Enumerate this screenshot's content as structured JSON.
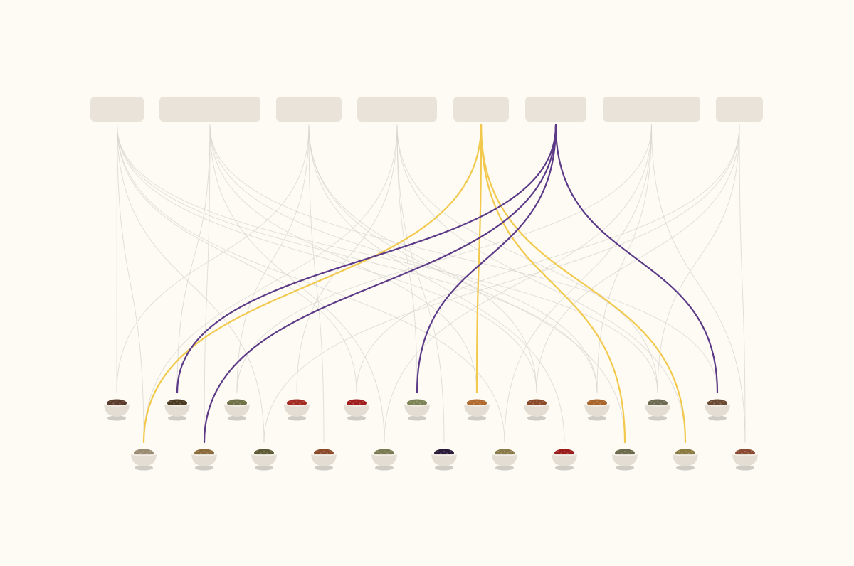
{
  "colors": {
    "background": "#fdfbf4",
    "category_box": "#e9e3da",
    "edge_default": "#d8d6d2",
    "highlight_yellow": "#f2c94c",
    "highlight_purple": "#5c3a87",
    "bowl": "#e4ddd3",
    "bowl_shadow": "#c6c3bc"
  },
  "categories": [
    {
      "id": "c0",
      "icon": "category-box"
    },
    {
      "id": "c1",
      "icon": "category-box"
    },
    {
      "id": "c2",
      "icon": "category-box"
    },
    {
      "id": "c3",
      "icon": "category-box"
    },
    {
      "id": "c4",
      "icon": "category-box",
      "highlight": "yellow"
    },
    {
      "id": "c5",
      "icon": "category-box",
      "highlight": "purple"
    },
    {
      "id": "c6",
      "icon": "category-box"
    },
    {
      "id": "c7",
      "icon": "category-box"
    }
  ],
  "spices": [
    {
      "id": "r1-0",
      "row": 1,
      "icon": "spice-bowl-icon",
      "color": "#5a3a2a"
    },
    {
      "id": "r1-1",
      "row": 1,
      "icon": "spice-bowl-icon",
      "color": "#4a3a22"
    },
    {
      "id": "r1-2",
      "row": 1,
      "icon": "spice-bowl-icon",
      "color": "#6f7046"
    },
    {
      "id": "r1-3",
      "row": 1,
      "icon": "spice-bowl-icon",
      "color": "#a32a22"
    },
    {
      "id": "r1-4",
      "row": 1,
      "icon": "spice-bowl-icon",
      "color": "#a01d1d"
    },
    {
      "id": "r1-5",
      "row": 1,
      "icon": "spice-bowl-icon",
      "color": "#7c8456"
    },
    {
      "id": "r1-6",
      "row": 1,
      "icon": "spice-bowl-icon",
      "color": "#b06a2e"
    },
    {
      "id": "r1-7",
      "row": 1,
      "icon": "spice-bowl-icon",
      "color": "#8a4a2a"
    },
    {
      "id": "r1-8",
      "row": 1,
      "icon": "spice-bowl-icon",
      "color": "#a8642a"
    },
    {
      "id": "r1-9",
      "row": 1,
      "icon": "spice-bowl-icon",
      "color": "#6d6a52"
    },
    {
      "id": "r1-10",
      "row": 1,
      "icon": "spice-bowl-icon",
      "color": "#6a4a32"
    },
    {
      "id": "r2-0",
      "row": 2,
      "icon": "spice-bowl-icon",
      "color": "#9a8a72"
    },
    {
      "id": "r2-1",
      "row": 2,
      "icon": "spice-bowl-icon",
      "color": "#8a6a3a"
    },
    {
      "id": "r2-2",
      "row": 2,
      "icon": "spice-bowl-icon",
      "color": "#5e5a36"
    },
    {
      "id": "r2-3",
      "row": 2,
      "icon": "spice-bowl-icon",
      "color": "#8a4a2a"
    },
    {
      "id": "r2-4",
      "row": 2,
      "icon": "spice-bowl-icon",
      "color": "#7a7a52"
    },
    {
      "id": "r2-5",
      "row": 2,
      "icon": "spice-bowl-icon",
      "color": "#2a1a3a"
    },
    {
      "id": "r2-6",
      "row": 2,
      "icon": "spice-bowl-icon",
      "color": "#8a7a4a"
    },
    {
      "id": "r2-7",
      "row": 2,
      "icon": "spice-bowl-icon",
      "color": "#9a1a1a"
    },
    {
      "id": "r2-8",
      "row": 2,
      "icon": "spice-bowl-icon",
      "color": "#6a6a4a"
    },
    {
      "id": "r2-9",
      "row": 2,
      "icon": "spice-bowl-icon",
      "color": "#8a7a42"
    },
    {
      "id": "r2-10",
      "row": 2,
      "icon": "spice-bowl-icon",
      "color": "#8a4a32"
    }
  ],
  "links": [
    {
      "from": "c0",
      "to": "r1-0"
    },
    {
      "from": "c0",
      "to": "r2-0"
    },
    {
      "from": "c0",
      "to": "r1-4"
    },
    {
      "from": "c0",
      "to": "r1-7"
    },
    {
      "from": "c0",
      "to": "r1-9"
    },
    {
      "from": "c0",
      "to": "r2-2"
    },
    {
      "from": "c0",
      "to": "r1-8"
    },
    {
      "from": "c0",
      "to": "r2-6"
    },
    {
      "from": "c1",
      "to": "r1-1"
    },
    {
      "from": "c1",
      "to": "r2-1"
    },
    {
      "from": "c1",
      "to": "r1-6"
    },
    {
      "from": "c1",
      "to": "r1-8"
    },
    {
      "from": "c1",
      "to": "r2-4"
    },
    {
      "from": "c1",
      "to": "r1-10"
    },
    {
      "from": "c2",
      "to": "r1-2"
    },
    {
      "from": "c2",
      "to": "r2-3"
    },
    {
      "from": "c2",
      "to": "r1-7"
    },
    {
      "from": "c2",
      "to": "r2-8"
    },
    {
      "from": "c2",
      "to": "r1-0"
    },
    {
      "from": "c2",
      "to": "r2-7"
    },
    {
      "from": "c3",
      "to": "r1-5"
    },
    {
      "from": "c3",
      "to": "r2-5"
    },
    {
      "from": "c3",
      "to": "r1-9"
    },
    {
      "from": "c3",
      "to": "r2-0"
    },
    {
      "from": "c3",
      "to": "r1-3"
    },
    {
      "from": "c3",
      "to": "r2-9"
    },
    {
      "from": "c4",
      "to": "r2-0"
    },
    {
      "from": "c4",
      "to": "r1-6"
    },
    {
      "from": "c4",
      "to": "r2-8"
    },
    {
      "from": "c4",
      "to": "r2-9"
    },
    {
      "from": "c5",
      "to": "r1-1"
    },
    {
      "from": "c5",
      "to": "r2-1"
    },
    {
      "from": "c5",
      "to": "r1-5"
    },
    {
      "from": "c5",
      "to": "r1-10"
    },
    {
      "from": "c6",
      "to": "r2-6"
    },
    {
      "from": "c6",
      "to": "r1-2"
    },
    {
      "from": "c6",
      "to": "r2-10"
    },
    {
      "from": "c6",
      "to": "r1-8"
    },
    {
      "from": "c6",
      "to": "r2-4"
    },
    {
      "from": "c7",
      "to": "r1-7"
    },
    {
      "from": "c7",
      "to": "r2-10"
    },
    {
      "from": "c7",
      "to": "r1-4"
    },
    {
      "from": "c7",
      "to": "r2-2"
    },
    {
      "from": "c7",
      "to": "r1-9"
    }
  ]
}
